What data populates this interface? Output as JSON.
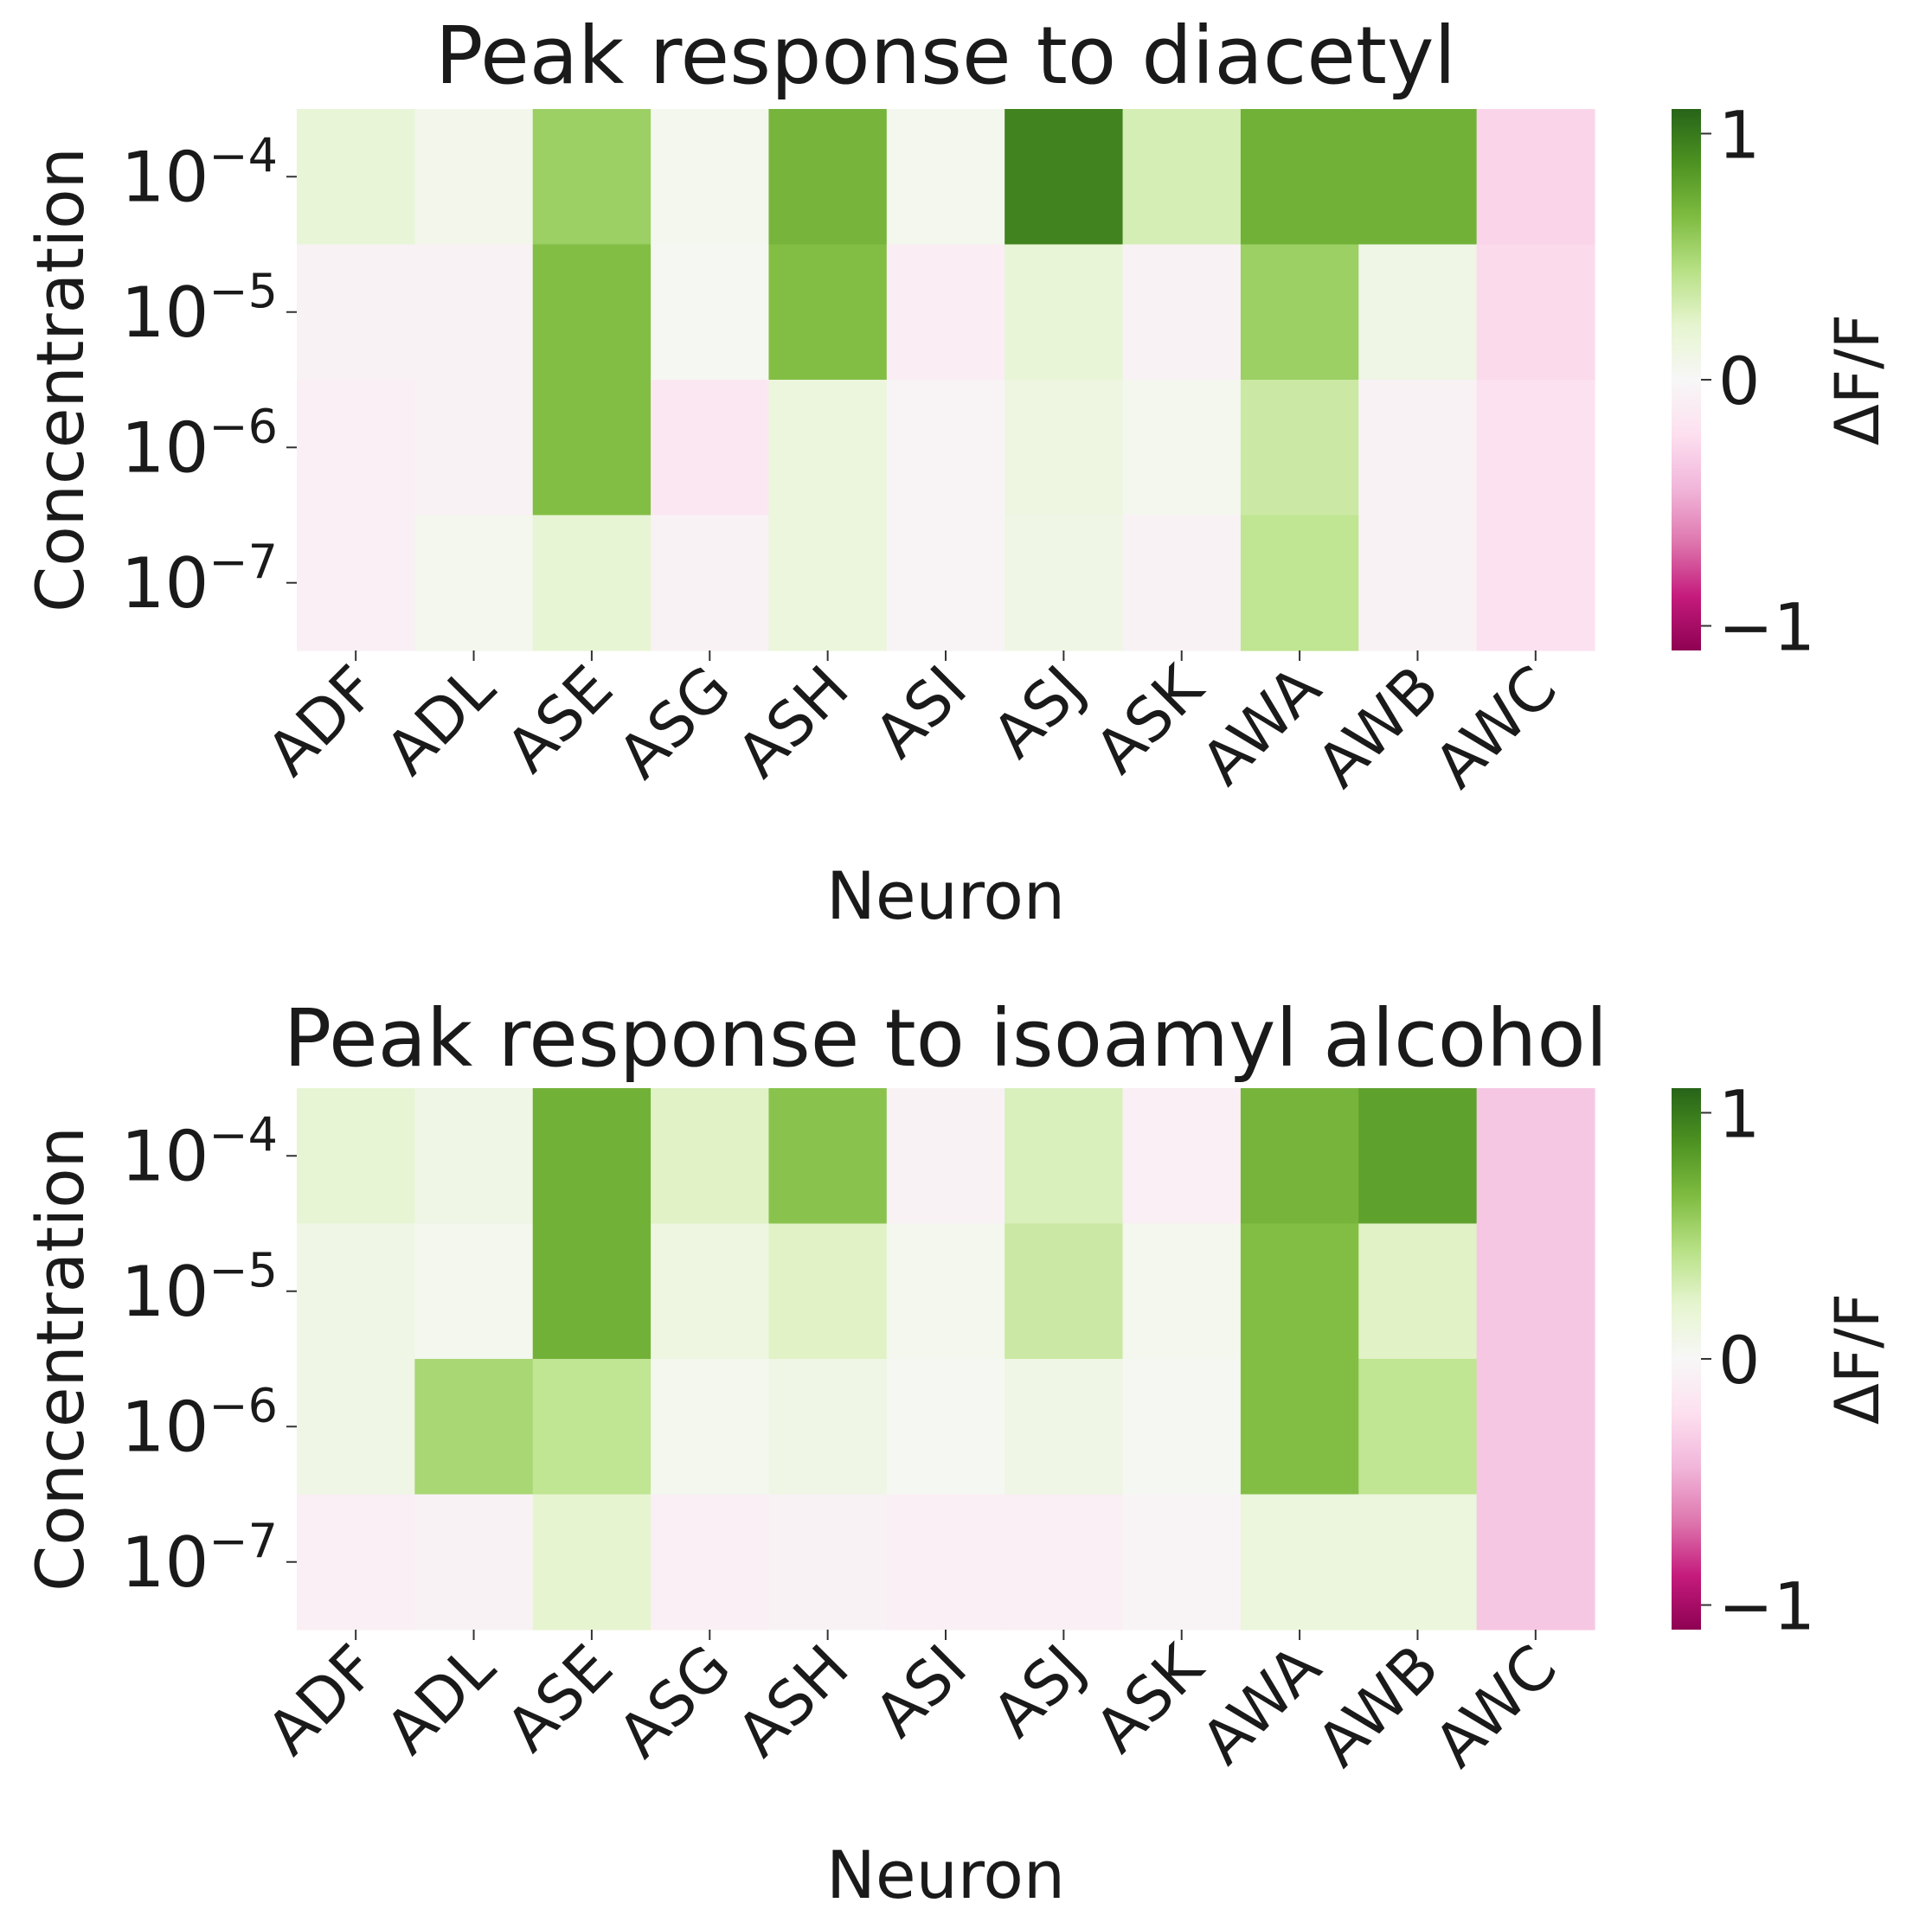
{
  "chart_data": [
    {
      "type": "heatmap",
      "title": "Peak response to diacetyl",
      "xlabel": "Neuron",
      "ylabel": "Concentration",
      "x_categories": [
        "ADF",
        "ADL",
        "ASE",
        "ASG",
        "ASH",
        "ASI",
        "ASJ",
        "ASK",
        "AWA",
        "AWB",
        "AWC"
      ],
      "y_categories": [
        {
          "base": "10",
          "exp": "−4"
        },
        {
          "base": "10",
          "exp": "−5"
        },
        {
          "base": "10",
          "exp": "−6"
        },
        {
          "base": "10",
          "exp": "−7"
        }
      ],
      "values": [
        [
          0.18,
          0.07,
          0.55,
          0.05,
          0.7,
          0.05,
          0.95,
          0.3,
          0.72,
          0.72,
          -0.28
        ],
        [
          -0.05,
          -0.05,
          0.65,
          0.03,
          0.65,
          -0.1,
          0.18,
          -0.05,
          0.55,
          0.1,
          -0.25
        ],
        [
          -0.08,
          -0.05,
          0.65,
          -0.15,
          0.15,
          -0.03,
          0.12,
          0.05,
          0.35,
          -0.05,
          -0.2
        ],
        [
          -0.08,
          0.05,
          0.2,
          -0.05,
          0.15,
          -0.03,
          0.1,
          -0.05,
          0.4,
          -0.05,
          -0.2
        ]
      ],
      "colorbar": {
        "label": "ΔF/F",
        "ticks": [
          "1",
          "0",
          "−1"
        ],
        "range": [
          -1.1,
          1.1
        ]
      },
      "colormap": "PiYG"
    },
    {
      "type": "heatmap",
      "title": "Peak response to isoamyl alcohol",
      "xlabel": "Neuron",
      "ylabel": "Concentration",
      "x_categories": [
        "ADF",
        "ADL",
        "ASE",
        "ASG",
        "ASH",
        "ASI",
        "ASJ",
        "ASK",
        "AWA",
        "AWB",
        "AWC"
      ],
      "y_categories": [
        {
          "base": "10",
          "exp": "−4"
        },
        {
          "base": "10",
          "exp": "−5"
        },
        {
          "base": "10",
          "exp": "−6"
        },
        {
          "base": "10",
          "exp": "−7"
        }
      ],
      "values": [
        [
          0.2,
          0.1,
          0.72,
          0.25,
          0.62,
          -0.05,
          0.28,
          -0.08,
          0.7,
          0.8,
          -0.35
        ],
        [
          0.1,
          0.05,
          0.72,
          0.12,
          0.25,
          0.05,
          0.35,
          0.05,
          0.65,
          0.25,
          -0.35
        ],
        [
          0.1,
          0.5,
          0.4,
          0.05,
          0.1,
          0.03,
          0.1,
          0.03,
          0.65,
          0.4,
          -0.35
        ],
        [
          -0.08,
          -0.05,
          0.22,
          -0.08,
          -0.05,
          -0.08,
          -0.08,
          -0.03,
          0.15,
          0.15,
          -0.35
        ]
      ],
      "colorbar": {
        "label": "ΔF/F",
        "ticks": [
          "1",
          "0",
          "−1"
        ],
        "range": [
          -1.1,
          1.1
        ]
      },
      "colormap": "PiYG"
    }
  ]
}
